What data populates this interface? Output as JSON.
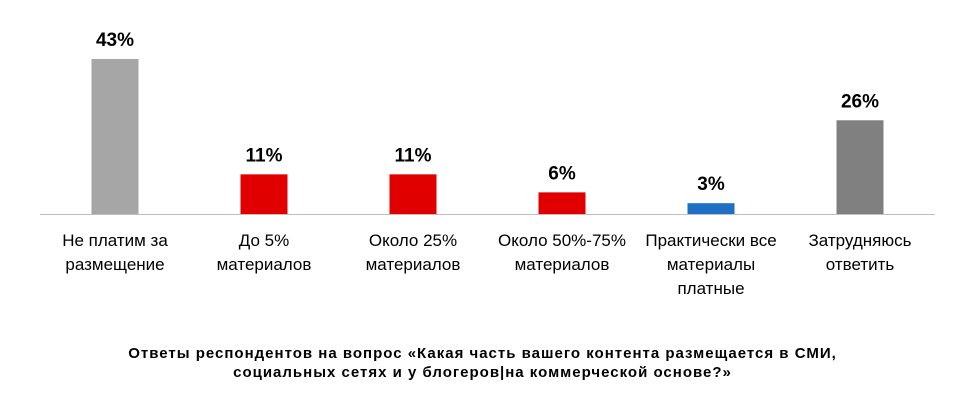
{
  "chart_data": {
    "type": "bar",
    "categories": [
      "Не платим за\nразмещение",
      "До 5%\nматериалов",
      "Около 25%\nматериалов",
      "Около 50%-75%\nматериалов",
      "Практически все\nматериалы\nплатные",
      "Затрудняюсь\nответить"
    ],
    "values": [
      43,
      11,
      11,
      6,
      3,
      26
    ],
    "value_labels": [
      "43%",
      "11%",
      "11%",
      "6%",
      "3%",
      "26%"
    ],
    "colors": [
      "#a6a6a6",
      "#e00000",
      "#e00000",
      "#e00000",
      "#1f6fc5",
      "#808080"
    ],
    "ylim": [
      0,
      43
    ],
    "grid": false,
    "legend": "none"
  },
  "caption": {
    "line1": "Ответы респондентов на вопрос «Какая часть вашего контента размещается в СМИ,",
    "line2": "социальных сетях и у блогеров|на коммерческой основе?»"
  }
}
